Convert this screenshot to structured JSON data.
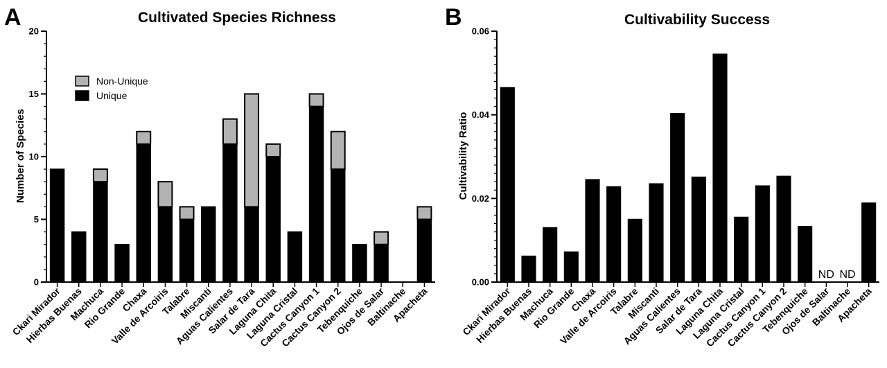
{
  "panels": {
    "a": {
      "letter": "A"
    },
    "b": {
      "letter": "B"
    }
  },
  "colors": {
    "unique": "#000000",
    "non_unique": "#b3b3b3"
  },
  "chart_data": [
    {
      "type": "bar",
      "stacked": true,
      "title": "Cultivated Species Richness",
      "xlabel": "",
      "ylabel": "Number of Species",
      "ylim": [
        0,
        20
      ],
      "yticks": [
        0,
        5,
        10,
        15,
        20
      ],
      "ytick_labels": [
        "0",
        "5",
        "10",
        "15",
        "20"
      ],
      "minor_ticks_per_major": 5,
      "legend": {
        "placement": "upper-left",
        "entries": [
          "Non-Unique",
          "Unique"
        ]
      },
      "categories": [
        "Ckari Mirador",
        "Hierbas Buenas",
        "Machuca",
        "Rio Grande",
        "Chaxa",
        "Valle de Arcoiris",
        "Talabre",
        "Miscanti",
        "Aguas Calientes",
        "Salar de Tara",
        "Laguna Chita",
        "Laguna Cristal",
        "Cactus Canyon 1",
        "Cactus Canyon 2",
        "Tebenquiche",
        "Ojos de Salar",
        "Baltinache",
        "Apacheta"
      ],
      "series": [
        {
          "name": "Unique",
          "values": [
            9,
            4,
            8,
            3,
            11,
            6,
            5,
            6,
            11,
            6,
            10,
            4,
            14,
            9,
            3,
            3,
            0,
            5
          ]
        },
        {
          "name": "Non-Unique",
          "values": [
            0,
            0,
            1,
            0,
            1,
            2,
            1,
            0,
            2,
            9,
            1,
            0,
            1,
            3,
            0,
            1,
            0,
            1
          ]
        }
      ]
    },
    {
      "type": "bar",
      "title": "Cultivability Success",
      "xlabel": "",
      "ylabel": "Cultivability Ratio",
      "ylim": [
        0,
        0.06
      ],
      "yticks": [
        0,
        0.02,
        0.04,
        0.06
      ],
      "ytick_labels": [
        "0.00",
        "0.02",
        "0.04",
        "0.06"
      ],
      "minor_ticks_per_major": 10,
      "categories": [
        "Ckari Mirador",
        "Hierbas Buenas",
        "Machuca",
        "Rio Grande",
        "Chaxa",
        "Valle de Arcoiris",
        "Talabre",
        "Miscanti",
        "Aguas Calientes",
        "Salar de Tara",
        "Laguna Chita",
        "Laguna Cristal",
        "Cactus Canyon 1",
        "Cactus Canyon 2",
        "Tebenquiche",
        "Ojos de Salar",
        "Baltinache",
        "Apacheta"
      ],
      "values": [
        0.0465,
        0.0062,
        0.013,
        0.0072,
        0.0245,
        0.0228,
        0.015,
        0.0235,
        0.0403,
        0.0251,
        0.0545,
        0.0155,
        0.023,
        0.0253,
        0.0133,
        null,
        null,
        0.0189
      ],
      "annotations": [
        {
          "category": "Ojos de Salar",
          "text": "ND"
        },
        {
          "category": "Baltinache",
          "text": "ND"
        }
      ]
    }
  ]
}
